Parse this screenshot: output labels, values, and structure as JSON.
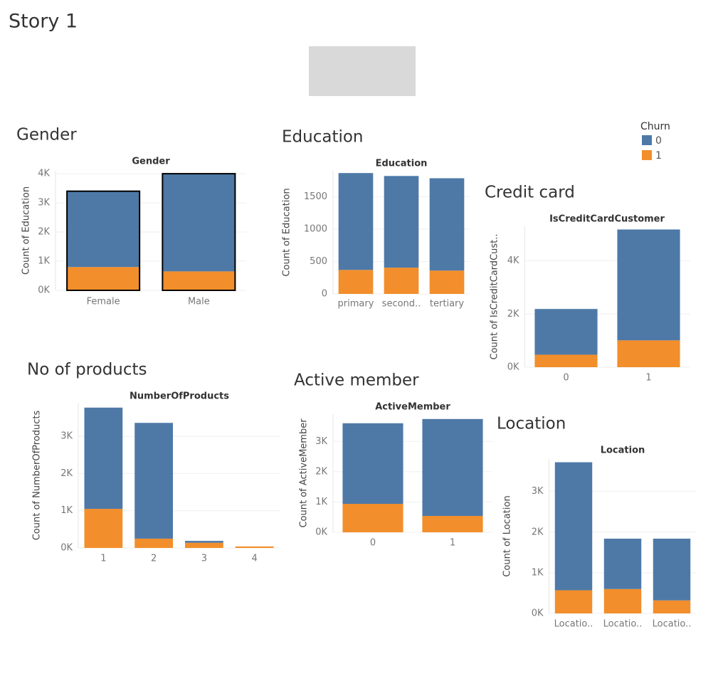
{
  "title": "Story 1",
  "legend": {
    "title": "Churn"
  },
  "chart_data": [
    {
      "type": "stacked_bar",
      "heading": "Gender",
      "title": "Gender",
      "y_label": "Count of Education",
      "categories": [
        "Female",
        "Male"
      ],
      "series": [
        {
          "name": "0",
          "color": "#4e79a7",
          "values": [
            2600,
            3350
          ]
        },
        {
          "name": "1",
          "color": "#f28e2b",
          "values": [
            800,
            650
          ]
        }
      ],
      "ylim": [
        0,
        4100
      ],
      "yticks": [
        {
          "value": 0,
          "label": "0K"
        },
        {
          "value": 1000,
          "label": "1K"
        },
        {
          "value": 2000,
          "label": "2K"
        },
        {
          "value": 3000,
          "label": "3K"
        },
        {
          "value": 4000,
          "label": "4K"
        }
      ],
      "grid": true,
      "outline_color": "#000000"
    },
    {
      "type": "stacked_bar",
      "heading": "Education",
      "title": "Education",
      "y_label": "Count of Education",
      "categories": [
        "primary",
        "second..",
        "tertiary"
      ],
      "series": [
        {
          "name": "0",
          "color": "#4e79a7",
          "values": [
            1495,
            1415,
            1425
          ]
        },
        {
          "name": "1",
          "color": "#f28e2b",
          "values": [
            370,
            405,
            360
          ]
        }
      ],
      "ylim": [
        0,
        1900
      ],
      "yticks": [
        0,
        500,
        1000,
        1500
      ],
      "grid": true
    },
    {
      "type": "stacked_bar",
      "heading": "Credit card",
      "title": "IsCreditCardCustomer",
      "y_label": "Count of IsCreditCardCust..",
      "categories": [
        "0",
        "1"
      ],
      "series": [
        {
          "name": "0",
          "color": "#4e79a7",
          "values": [
            1720,
            4170
          ]
        },
        {
          "name": "1",
          "color": "#f28e2b",
          "values": [
            470,
            1010
          ]
        }
      ],
      "ylim": [
        0,
        5300
      ],
      "yticks": [
        {
          "value": 0,
          "label": "0K"
        },
        {
          "value": 2000,
          "label": "2K"
        },
        {
          "value": 4000,
          "label": "4K"
        }
      ],
      "grid": true
    },
    {
      "type": "stacked_bar",
      "heading": "No of products",
      "title": "NumberOfProducts",
      "y_label": "Count of NumberOfProducts",
      "categories": [
        "1",
        "2",
        "3",
        "4"
      ],
      "series": [
        {
          "name": "0",
          "color": "#4e79a7",
          "values": [
            2720,
            3110,
            50,
            0
          ]
        },
        {
          "name": "1",
          "color": "#f28e2b",
          "values": [
            1050,
            250,
            140,
            40
          ]
        }
      ],
      "ylim": [
        0,
        3900
      ],
      "yticks": [
        {
          "value": 0,
          "label": "0K"
        },
        {
          "value": 1000,
          "label": "1K"
        },
        {
          "value": 2000,
          "label": "2K"
        },
        {
          "value": 3000,
          "label": "3K"
        }
      ],
      "grid": true
    },
    {
      "type": "stacked_bar",
      "heading": "Active member",
      "title": "ActiveMember",
      "y_label": "Count of ActiveMember",
      "categories": [
        "0",
        "1"
      ],
      "series": [
        {
          "name": "0",
          "color": "#4e79a7",
          "values": [
            2660,
            3200
          ]
        },
        {
          "name": "1",
          "color": "#f28e2b",
          "values": [
            940,
            540
          ]
        }
      ],
      "ylim": [
        0,
        3900
      ],
      "yticks": [
        {
          "value": 0,
          "label": "0K"
        },
        {
          "value": 1000,
          "label": "1K"
        },
        {
          "value": 2000,
          "label": "2K"
        },
        {
          "value": 3000,
          "label": "3K"
        }
      ],
      "grid": true
    },
    {
      "type": "stacked_bar",
      "heading": "Location",
      "title": "Location",
      "y_label": "Count of Location",
      "categories": [
        "Locatio..",
        "Locatio..",
        "Locatio.."
      ],
      "series": [
        {
          "name": "0",
          "color": "#4e79a7",
          "values": [
            3150,
            1240,
            1520
          ]
        },
        {
          "name": "1",
          "color": "#f28e2b",
          "values": [
            570,
            600,
            320
          ]
        }
      ],
      "ylim": [
        0,
        3800
      ],
      "yticks": [
        {
          "value": 0,
          "label": "0K"
        },
        {
          "value": 1000,
          "label": "1K"
        },
        {
          "value": 2000,
          "label": "2K"
        },
        {
          "value": 3000,
          "label": "3K"
        }
      ],
      "grid": true
    }
  ]
}
